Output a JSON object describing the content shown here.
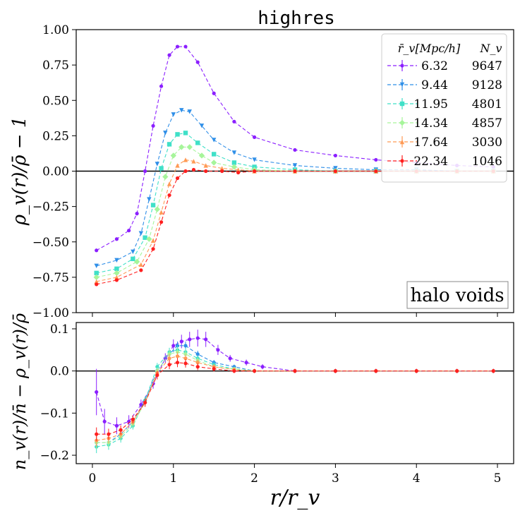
{
  "title": "highres",
  "chart_data": [
    {
      "type": "line",
      "panel": "top",
      "ylabel": "ρ_v(r)/ρ̄ − 1",
      "xlim": [
        -0.2,
        5.2
      ],
      "ylim": [
        -1.0,
        1.0
      ],
      "yticks": [
        "−1.00",
        "−0.75",
        "−0.50",
        "−0.25",
        "0.00",
        "0.25",
        "0.50",
        "0.75",
        "1.00"
      ],
      "ytick_values": [
        -1.0,
        -0.75,
        -0.5,
        -0.25,
        0.0,
        0.25,
        0.5,
        0.75,
        1.0
      ],
      "annotation": "halo voids",
      "legend": {
        "col1_header": "r̄_v[Mpc/h]",
        "col2_header": "N_v",
        "position": "top-right"
      },
      "series": [
        {
          "name": "6.32",
          "count": "9647",
          "color": "#8b1fff",
          "marker": "o",
          "x": [
            0.05,
            0.3,
            0.45,
            0.55,
            0.65,
            0.75,
            0.85,
            0.95,
            1.05,
            1.15,
            1.3,
            1.5,
            1.75,
            2.0,
            2.5,
            3.0,
            3.5,
            4.0,
            4.5,
            4.95
          ],
          "y": [
            -0.56,
            -0.48,
            -0.42,
            -0.3,
            0.0,
            0.32,
            0.6,
            0.82,
            0.88,
            0.88,
            0.77,
            0.55,
            0.35,
            0.24,
            0.15,
            0.11,
            0.08,
            0.06,
            0.04,
            0.03
          ]
        },
        {
          "name": "9.44",
          "count": "9128",
          "color": "#2f8fe8",
          "marker": "v",
          "x": [
            0.05,
            0.3,
            0.5,
            0.6,
            0.7,
            0.8,
            0.9,
            1.0,
            1.1,
            1.2,
            1.35,
            1.5,
            1.75,
            2.0,
            2.5,
            3.0,
            3.5,
            4.0,
            4.5,
            4.95
          ],
          "y": [
            -0.67,
            -0.63,
            -0.57,
            -0.44,
            -0.2,
            0.05,
            0.27,
            0.4,
            0.43,
            0.42,
            0.32,
            0.22,
            0.13,
            0.08,
            0.04,
            0.02,
            0.01,
            0.01,
            0.0,
            0.0
          ]
        },
        {
          "name": "11.95",
          "count": "4801",
          "color": "#3fe0c8",
          "marker": "s",
          "x": [
            0.05,
            0.3,
            0.5,
            0.65,
            0.75,
            0.85,
            0.95,
            1.05,
            1.15,
            1.3,
            1.5,
            1.75,
            2.0,
            2.5,
            3.0,
            3.5,
            4.0,
            4.5,
            4.95
          ],
          "y": [
            -0.72,
            -0.69,
            -0.62,
            -0.47,
            -0.24,
            0.02,
            0.19,
            0.26,
            0.27,
            0.2,
            0.12,
            0.06,
            0.03,
            0.01,
            0.0,
            0.0,
            0.0,
            0.0,
            0.0
          ]
        },
        {
          "name": "14.34",
          "count": "4857",
          "color": "#a6f59a",
          "marker": "D",
          "x": [
            0.05,
            0.3,
            0.55,
            0.7,
            0.8,
            0.9,
            1.0,
            1.1,
            1.2,
            1.35,
            1.5,
            1.75,
            2.0,
            2.5,
            3.0,
            3.5,
            4.0,
            4.5,
            4.95
          ],
          "y": [
            -0.75,
            -0.72,
            -0.64,
            -0.48,
            -0.27,
            -0.04,
            0.11,
            0.17,
            0.17,
            0.11,
            0.06,
            0.03,
            0.01,
            0.0,
            0.0,
            0.0,
            0.0,
            0.0,
            0.0
          ]
        },
        {
          "name": "17.64",
          "count": "3030",
          "color": "#ff9a55",
          "marker": "^",
          "x": [
            0.05,
            0.3,
            0.6,
            0.75,
            0.85,
            0.95,
            1.05,
            1.15,
            1.25,
            1.4,
            1.6,
            1.8,
            2.0,
            2.5,
            3.0,
            3.5,
            4.0,
            4.5,
            4.95
          ],
          "y": [
            -0.78,
            -0.75,
            -0.66,
            -0.49,
            -0.29,
            -0.09,
            0.04,
            0.08,
            0.07,
            0.04,
            0.02,
            0.01,
            0.0,
            0.0,
            0.0,
            0.0,
            0.0,
            0.0,
            0.0
          ]
        },
        {
          "name": "22.34",
          "count": "1046",
          "color": "#ff1f1f",
          "marker": "o",
          "x": [
            0.05,
            0.3,
            0.6,
            0.75,
            0.85,
            0.95,
            1.05,
            1.15,
            1.25,
            1.4,
            1.6,
            1.8,
            2.0,
            2.5,
            3.0,
            3.5,
            4.0,
            4.5,
            4.95
          ],
          "y": [
            -0.8,
            -0.77,
            -0.7,
            -0.55,
            -0.36,
            -0.17,
            -0.05,
            0.0,
            0.01,
            0.0,
            0.0,
            -0.01,
            0.0,
            0.0,
            0.0,
            0.0,
            0.0,
            0.0,
            0.0
          ]
        }
      ]
    },
    {
      "type": "line",
      "panel": "bottom",
      "ylabel": "n_v(r)/n̄ − ρ_v(r)/ρ̄",
      "xlabel": "r/r_v",
      "xlim": [
        -0.2,
        5.2
      ],
      "ylim": [
        -0.22,
        0.115
      ],
      "xticks": [
        "0",
        "1",
        "2",
        "3",
        "4",
        "5"
      ],
      "xtick_values": [
        0,
        1,
        2,
        3,
        4,
        5
      ],
      "yticks": [
        "−0.2",
        "−0.1",
        "0.0",
        "0.1"
      ],
      "ytick_values": [
        -0.2,
        -0.1,
        0.0,
        0.1
      ],
      "series": [
        {
          "name": "6.32",
          "color": "#8b1fff",
          "x": [
            0.05,
            0.15,
            0.3,
            0.45,
            0.6,
            0.75,
            0.9,
            1.0,
            1.1,
            1.2,
            1.3,
            1.4,
            1.55,
            1.7,
            1.9,
            2.1,
            2.5,
            3.0,
            3.5,
            4.0,
            4.5,
            4.95
          ],
          "y": [
            -0.05,
            -0.12,
            -0.13,
            -0.12,
            -0.08,
            -0.03,
            0.03,
            0.06,
            0.07,
            0.075,
            0.078,
            0.075,
            0.05,
            0.03,
            0.02,
            0.01,
            0.0,
            0.0,
            0.0,
            0.0,
            0.0,
            0.0
          ],
          "err": [
            0.055,
            0.03,
            0.02,
            0.015,
            0.012,
            0.012,
            0.012,
            0.015,
            0.016,
            0.018,
            0.02,
            0.018,
            0.012,
            0.008,
            0.007,
            0.006,
            0.005,
            0.005,
            0.005,
            0.005,
            0.005,
            0.005
          ]
        },
        {
          "name": "9.44",
          "color": "#2f8fe8",
          "x": [
            0.05,
            0.2,
            0.35,
            0.5,
            0.65,
            0.8,
            0.95,
            1.05,
            1.15,
            1.3,
            1.5,
            1.75,
            2.0,
            2.5,
            3.0,
            3.5,
            4.0,
            4.5,
            4.95
          ],
          "y": [
            -0.17,
            -0.17,
            -0.15,
            -0.12,
            -0.07,
            0.0,
            0.04,
            0.06,
            0.06,
            0.04,
            0.02,
            0.01,
            0.0,
            0.0,
            0.0,
            0.0,
            0.0,
            0.0,
            0.0
          ],
          "err": [
            0.015,
            0.012,
            0.01,
            0.009,
            0.009,
            0.009,
            0.01,
            0.01,
            0.01,
            0.008,
            0.006,
            0.005,
            0.004,
            0.004,
            0.004,
            0.004,
            0.004,
            0.004,
            0.004
          ]
        },
        {
          "name": "11.95",
          "color": "#3fe0c8",
          "x": [
            0.05,
            0.2,
            0.35,
            0.5,
            0.65,
            0.8,
            0.95,
            1.05,
            1.15,
            1.3,
            1.5,
            1.75,
            2.0,
            2.5,
            3.0,
            3.5,
            4.0,
            4.5,
            4.95
          ],
          "y": [
            -0.18,
            -0.175,
            -0.16,
            -0.13,
            -0.07,
            0.01,
            0.045,
            0.05,
            0.045,
            0.03,
            0.015,
            0.005,
            0.0,
            0.0,
            0.0,
            0.0,
            0.0,
            0.0,
            0.0
          ],
          "err": [
            0.015,
            0.012,
            0.01,
            0.009,
            0.009,
            0.009,
            0.01,
            0.01,
            0.009,
            0.007,
            0.006,
            0.005,
            0.004,
            0.004,
            0.004,
            0.004,
            0.004,
            0.004,
            0.004
          ]
        },
        {
          "name": "14.34",
          "color": "#a6f59a",
          "x": [
            0.05,
            0.2,
            0.35,
            0.5,
            0.65,
            0.8,
            0.95,
            1.05,
            1.15,
            1.3,
            1.5,
            1.75,
            2.0,
            2.5,
            3.0,
            3.5,
            4.0,
            4.5,
            4.95
          ],
          "y": [
            -0.17,
            -0.17,
            -0.155,
            -0.125,
            -0.075,
            0.0,
            0.04,
            0.045,
            0.04,
            0.025,
            0.01,
            0.005,
            0.0,
            0.0,
            0.0,
            0.0,
            0.0,
            0.0,
            0.0
          ],
          "err": [
            0.015,
            0.012,
            0.01,
            0.009,
            0.009,
            0.009,
            0.01,
            0.01,
            0.009,
            0.007,
            0.006,
            0.005,
            0.004,
            0.004,
            0.004,
            0.004,
            0.004,
            0.004,
            0.004
          ]
        },
        {
          "name": "17.64",
          "color": "#ff9a55",
          "x": [
            0.05,
            0.2,
            0.35,
            0.5,
            0.65,
            0.8,
            0.95,
            1.05,
            1.15,
            1.3,
            1.5,
            1.75,
            2.0,
            2.5,
            3.0,
            3.5,
            4.0,
            4.5,
            4.95
          ],
          "y": [
            -0.165,
            -0.16,
            -0.15,
            -0.12,
            -0.075,
            -0.005,
            0.03,
            0.035,
            0.03,
            0.02,
            0.01,
            0.003,
            0.0,
            0.0,
            0.0,
            0.0,
            0.0,
            0.0,
            0.0
          ],
          "err": [
            0.015,
            0.012,
            0.01,
            0.009,
            0.009,
            0.009,
            0.01,
            0.01,
            0.009,
            0.007,
            0.006,
            0.005,
            0.004,
            0.004,
            0.004,
            0.004,
            0.004,
            0.004,
            0.004
          ]
        },
        {
          "name": "22.34",
          "color": "#ff1f1f",
          "x": [
            0.05,
            0.2,
            0.35,
            0.5,
            0.65,
            0.8,
            0.95,
            1.05,
            1.15,
            1.3,
            1.5,
            1.75,
            2.0,
            2.5,
            3.0,
            3.5,
            4.0,
            4.5,
            4.95
          ],
          "y": [
            -0.15,
            -0.15,
            -0.14,
            -0.115,
            -0.075,
            -0.01,
            0.015,
            0.02,
            0.018,
            0.01,
            0.005,
            0.0,
            0.0,
            0.0,
            0.0,
            0.0,
            0.0,
            0.0,
            0.0
          ],
          "err": [
            0.016,
            0.013,
            0.011,
            0.01,
            0.01,
            0.01,
            0.011,
            0.011,
            0.01,
            0.008,
            0.006,
            0.005,
            0.005,
            0.005,
            0.005,
            0.005,
            0.005,
            0.005,
            0.005
          ]
        }
      ]
    }
  ]
}
